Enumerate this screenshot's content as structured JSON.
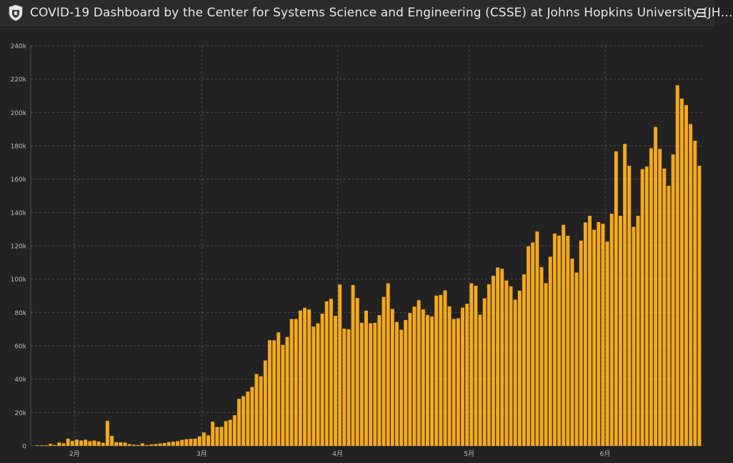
{
  "header": {
    "title": "COVID-19 Dashboard by the Center for Systems Science and Engineering (CSSE) at Johns Hopkins University (JH…",
    "logo_icon": "shield-logo-icon",
    "menu_icon": "hamburger-menu-icon"
  },
  "colors": {
    "background": "#222222",
    "bar": "#f5a91c",
    "grid": "#4a4a4a",
    "axis_text": "#bdbdbd"
  },
  "chart_data": {
    "type": "bar",
    "title": "",
    "xlabel": "",
    "ylabel": "",
    "ylim": [
      0,
      240000
    ],
    "y_ticks": [
      "0",
      "20k",
      "40k",
      "60k",
      "80k",
      "100k",
      "120k",
      "140k",
      "160k",
      "180k",
      "200k",
      "220k",
      "240k"
    ],
    "x_tick_labels": [
      "2月",
      "3月",
      "4月",
      "5月",
      "6月"
    ],
    "x_tick_index": [
      10,
      39,
      70,
      100,
      131
    ],
    "grid": true,
    "legend": "none",
    "series": [
      {
        "values": [
          0,
          100,
          150,
          200,
          1200,
          500,
          2000,
          1500,
          4300,
          2900,
          3800,
          3200,
          3700,
          2800,
          3200,
          2600,
          1800,
          15000,
          6000,
          2200,
          2100,
          2000,
          1000,
          700,
          500,
          1500,
          500,
          900,
          1100,
          1400,
          1700,
          2300,
          2500,
          2800,
          3600,
          4000,
          4200,
          4300,
          5700,
          8000,
          6300,
          14500,
          11300,
          11400,
          14800,
          15600,
          18400,
          28200,
          29800,
          32600,
          35300,
          43100,
          41700,
          51200,
          63400,
          63300,
          68000,
          60500,
          65300,
          76100,
          76100,
          81200,
          82800,
          81800,
          71600,
          73500,
          79300,
          86700,
          88200,
          78000,
          96800,
          70300,
          69900,
          96500,
          88700,
          73800,
          81100,
          73500,
          73800,
          78400,
          89300,
          97500,
          82100,
          74300,
          69600,
          75500,
          79700,
          83500,
          87400,
          81900,
          78500,
          77600,
          90100,
          90500,
          93200,
          83700,
          76100,
          76500,
          82900,
          85200,
          97500,
          96000,
          78700,
          88500,
          96900,
          102000,
          107000,
          106200,
          99200,
          95700,
          87700,
          93100,
          102900,
          119700,
          122000,
          128600,
          107200,
          97600,
          113400,
          127300,
          126100,
          132500,
          126000,
          112300,
          103900,
          123100,
          134000,
          138000,
          129600,
          134200,
          133200,
          122500,
          139200,
          176700,
          138000,
          181100,
          168000,
          131400,
          138000,
          166000,
          167500,
          178500,
          191300,
          178100,
          166300,
          156000,
          174800,
          216300,
          208300,
          204400,
          193000,
          183000,
          168000
        ]
      }
    ]
  }
}
